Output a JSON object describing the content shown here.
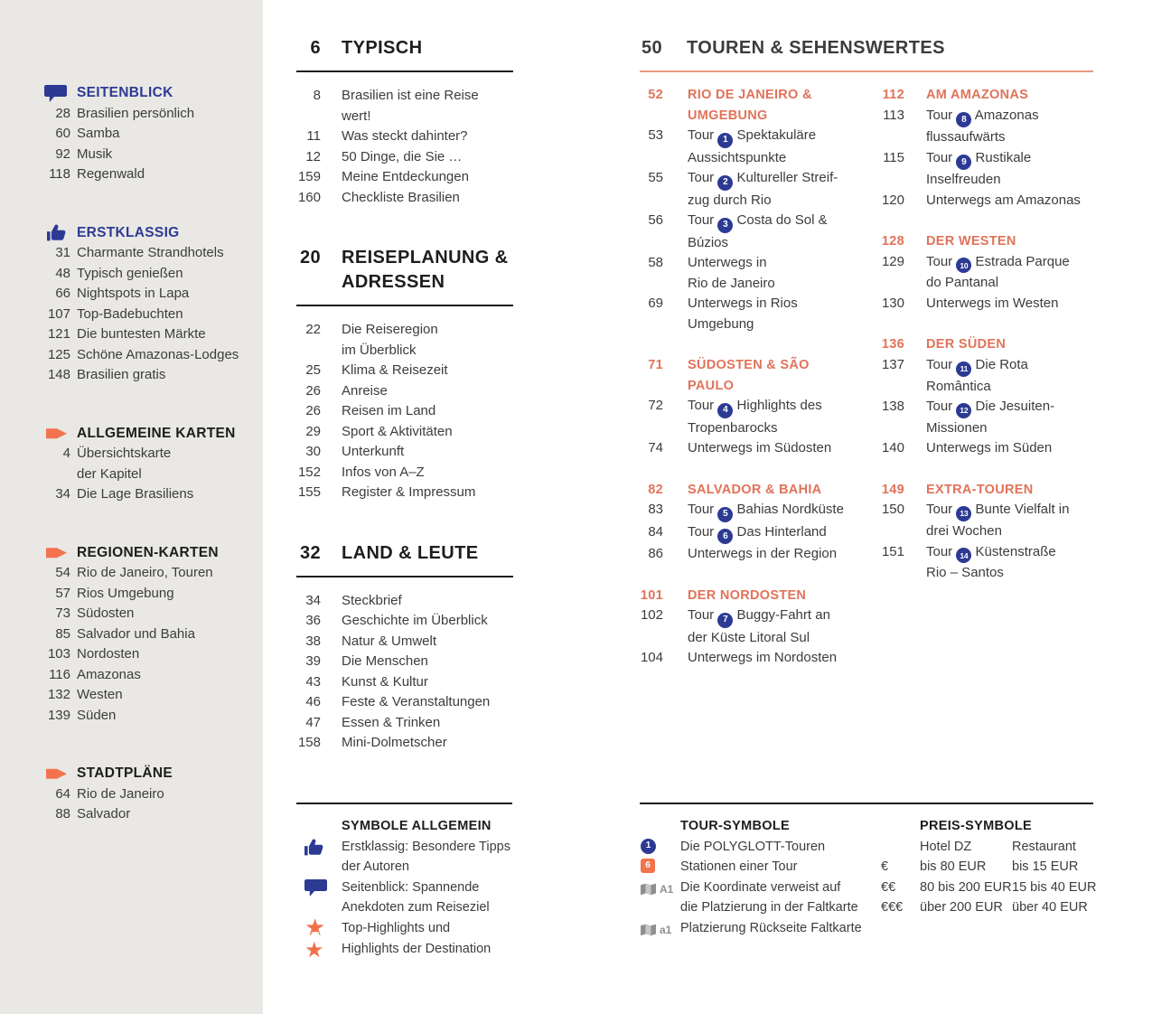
{
  "colors": {
    "blue": "#2d3a94",
    "orange_text": "#e0735a",
    "orange_icon": "#f2744e",
    "heading": "#1d1d1d",
    "body_text": "#3c3c3c",
    "sidebar_bg": "#e9e8e5"
  },
  "sidebar": {
    "sections": [
      {
        "icon": "speech-bubble-icon",
        "title": "SEITENBLICK",
        "title_color": "blue",
        "items": [
          {
            "page": "28",
            "label": "Brasilien persönlich"
          },
          {
            "page": "60",
            "label": "Samba"
          },
          {
            "page": "92",
            "label": "Musik"
          },
          {
            "page": "118",
            "label": "Regenwald"
          }
        ]
      },
      {
        "icon": "thumbs-up-icon",
        "title": "ERSTKLASSIG",
        "title_color": "blue",
        "items": [
          {
            "page": "31",
            "label": "Charmante Strandhotels"
          },
          {
            "page": "48",
            "label": "Typisch genießen"
          },
          {
            "page": "66",
            "label": "Nightspots in Lapa"
          },
          {
            "page": "107",
            "label": "Top-Badebuchten"
          },
          {
            "page": "121",
            "label": "Die buntesten Märkte"
          },
          {
            "page": "125",
            "label": "Schöne Amazonas-Lodges"
          },
          {
            "page": "148",
            "label": "Brasilien gratis"
          }
        ]
      },
      {
        "icon": "arrow-icon",
        "title": "ALLGEMEINE KARTEN",
        "title_color": "dark",
        "items": [
          {
            "page": "4",
            "label": "Übersichtskarte\nder Kapitel"
          },
          {
            "page": "34",
            "label": "Die Lage Brasiliens"
          }
        ]
      },
      {
        "icon": "arrow-icon",
        "title": "REGIONEN-KARTEN",
        "title_color": "dark",
        "items": [
          {
            "page": "54",
            "label": "Rio de Janeiro, Touren"
          },
          {
            "page": "57",
            "label": "Rios Umgebung"
          },
          {
            "page": "73",
            "label": "Südosten"
          },
          {
            "page": "85",
            "label": "Salvador und Bahia"
          },
          {
            "page": "103",
            "label": "Nordosten"
          },
          {
            "page": "116",
            "label": "Amazonas"
          },
          {
            "page": "132",
            "label": "Westen"
          },
          {
            "page": "139",
            "label": "Süden"
          }
        ]
      },
      {
        "icon": "arrow-icon",
        "title": "STADTPLÄNE",
        "title_color": "dark",
        "items": [
          {
            "page": "64",
            "label": "Rio de Janeiro"
          },
          {
            "page": "88",
            "label": "Salvador"
          }
        ]
      }
    ]
  },
  "main_sections": [
    {
      "page": "6",
      "title": "TYPISCH",
      "items": [
        {
          "page": "8",
          "label": "Brasilien ist eine Reise\nwert!"
        },
        {
          "page": "11",
          "label": "Was steckt dahinter?"
        },
        {
          "page": "12",
          "label": "50 Dinge, die Sie …"
        },
        {
          "page": "159",
          "label": "Meine Entdeckungen"
        },
        {
          "page": "160",
          "label": "Checkliste Brasilien"
        }
      ]
    },
    {
      "page": "20",
      "title": "REISEPLANUNG &\nADRESSEN",
      "items": [
        {
          "page": "22",
          "label": "Die Reiseregion\nim Überblick"
        },
        {
          "page": "25",
          "label": "Klima & Reisezeit"
        },
        {
          "page": "26",
          "label": "Anreise"
        },
        {
          "page": "26",
          "label": "Reisen im Land"
        },
        {
          "page": "29",
          "label": "Sport & Aktivitäten"
        },
        {
          "page": "30",
          "label": "Unterkunft"
        },
        {
          "page": "152",
          "label": "Infos von A–Z"
        },
        {
          "page": "155",
          "label": "Register & Impressum"
        }
      ]
    },
    {
      "page": "32",
      "title": "LAND & LEUTE",
      "items": [
        {
          "page": "34",
          "label": "Steckbrief"
        },
        {
          "page": "36",
          "label": "Geschichte im Überblick"
        },
        {
          "page": "38",
          "label": "Natur & Umwelt"
        },
        {
          "page": "39",
          "label": "Die Menschen"
        },
        {
          "page": "43",
          "label": "Kunst & Kultur"
        },
        {
          "page": "46",
          "label": "Feste & Veranstaltungen"
        },
        {
          "page": "47",
          "label": "Essen & Trinken"
        },
        {
          "page": "158",
          "label": "Mini-Dolmetscher"
        }
      ]
    }
  ],
  "touren": {
    "page": "50",
    "title": "TOUREN & SEHENSWERTES",
    "columns": [
      [
        {
          "page": "52",
          "title": "RIO DE JANEIRO &\nUMGEBUNG",
          "items": [
            {
              "page": "53",
              "tour": true,
              "badge": "1",
              "label": "Spektakuläre\nAussichtspunkte"
            },
            {
              "page": "55",
              "tour": true,
              "badge": "2",
              "label": "Kultureller Streif-\nzug durch Rio"
            },
            {
              "page": "56",
              "tour": true,
              "badge": "3",
              "label": "Costa do Sol &\nBúzios"
            },
            {
              "page": "58",
              "label": "Unterwegs in\nRio de Janeiro"
            },
            {
              "page": "69",
              "label": "Unterwegs in Rios\nUmgebung"
            }
          ]
        },
        {
          "page": "71",
          "title": "SÜDOSTEN & SÃO PAULO",
          "items": [
            {
              "page": "72",
              "tour": true,
              "badge": "4",
              "label": "Highlights des\nTropenbarocks"
            },
            {
              "page": "74",
              "label": "Unterwegs im Südosten"
            }
          ]
        },
        {
          "page": "82",
          "title": "SALVADOR & BAHIA",
          "items": [
            {
              "page": "83",
              "tour": true,
              "badge": "5",
              "label": "Bahias Nordküste"
            },
            {
              "page": "84",
              "tour": true,
              "badge": "6",
              "label": "Das Hinterland"
            },
            {
              "page": "86",
              "label": "Unterwegs in der Region"
            }
          ]
        },
        {
          "page": "101",
          "title": "DER NORDOSTEN",
          "items": [
            {
              "page": "102",
              "tour": true,
              "badge": "7",
              "label": "Buggy-Fahrt an\nder Küste Litoral Sul"
            },
            {
              "page": "104",
              "label": "Unterwegs im Nordosten"
            }
          ]
        }
      ],
      [
        {
          "page": "112",
          "title": "AM AMAZONAS",
          "items": [
            {
              "page": "113",
              "tour": true,
              "badge": "8",
              "label": "Amazonas\nflussaufwärts"
            },
            {
              "page": "115",
              "tour": true,
              "badge": "9",
              "label": "Rustikale\nInselfreuden"
            },
            {
              "page": "120",
              "label": "Unterwegs am Amazonas"
            }
          ]
        },
        {
          "page": "128",
          "title": "DER WESTEN",
          "items": [
            {
              "page": "129",
              "tour": true,
              "badge": "10",
              "label": "Estrada Parque\ndo Pantanal"
            },
            {
              "page": "130",
              "label": "Unterwegs im Westen"
            }
          ]
        },
        {
          "page": "136",
          "title": "DER SÜDEN",
          "items": [
            {
              "page": "137",
              "tour": true,
              "badge": "11",
              "label": "Die Rota\nRomântica"
            },
            {
              "page": "138",
              "tour": true,
              "badge": "12",
              "label": "Die Jesuiten-\nMissionen"
            },
            {
              "page": "140",
              "label": "Unterwegs im Süden"
            }
          ]
        },
        {
          "page": "149",
          "title": "EXTRA-TOUREN",
          "items": [
            {
              "page": "150",
              "tour": true,
              "badge": "13",
              "label": "Bunte Vielfalt in\ndrei Wochen"
            },
            {
              "page": "151",
              "tour": true,
              "badge": "14",
              "label": "Küstenstraße\nRio – Santos"
            }
          ]
        }
      ]
    ]
  },
  "legend": {
    "symbole_allgemein": {
      "title": "SYMBOLE ALLGEMEIN",
      "rows": [
        {
          "icon": "thumbs-up-icon",
          "label": "Erstklassig: Besondere Tipps\nder Autoren"
        },
        {
          "icon": "speech-bubble-icon",
          "label": "Seitenblick: Spannende\nAnekdoten zum Reiseziel"
        },
        {
          "icon": "star-12-icon",
          "icon_label": "12",
          "label": "Top-Highlights und"
        },
        {
          "icon": "star-icon",
          "label": "Highlights der Destination"
        }
      ]
    },
    "tour_symbole": {
      "title": "TOUR-SYMBOLE",
      "rows": [
        {
          "icon": "tour-badge",
          "icon_label": "1",
          "label": "Die POLYGLOTT-Touren"
        },
        {
          "icon": "station-badge",
          "icon_label": "6",
          "label": "Stationen einer Tour"
        },
        {
          "icon": "map-icon",
          "icon_label": "A1",
          "label": "Die Koordinate verweist auf\ndie Platzierung in der Faltkarte"
        },
        {
          "icon": "map-icon",
          "icon_label": "a1",
          "label": "Platzierung Rückseite Faltkarte"
        }
      ]
    },
    "preis_symbole": {
      "title": "PREIS-SYMBOLE",
      "col_headers": [
        "Hotel DZ",
        "Restaurant"
      ],
      "rows": [
        {
          "sym": "€",
          "hotel": "bis 80 EUR",
          "restaurant": "bis 15 EUR"
        },
        {
          "sym": "€€",
          "hotel": "80 bis 200 EUR",
          "restaurant": "15 bis 40 EUR"
        },
        {
          "sym": "€€€",
          "hotel": "über 200 EUR",
          "restaurant": "über 40 EUR"
        }
      ]
    }
  }
}
